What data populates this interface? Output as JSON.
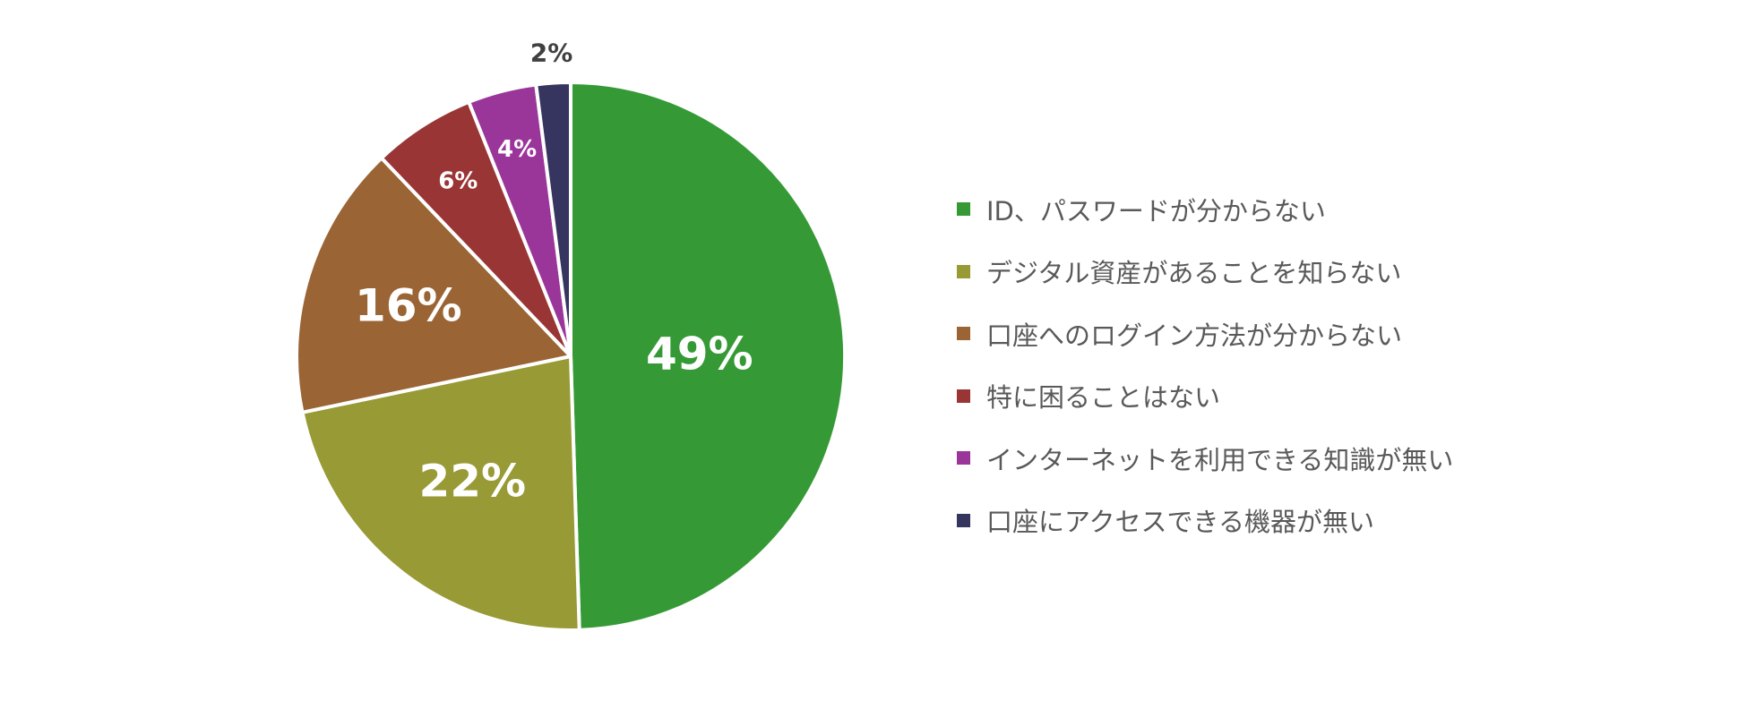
{
  "chart_data": {
    "type": "pie",
    "title": "",
    "start_angle_deg": 90,
    "direction": "clockwise",
    "legend_position": "right",
    "categories": [
      "ID、パスワードが分からない",
      "デジタル資産があることを知らない",
      "口座へのログイン方法が分からない",
      "特に困ることはない",
      "インターネットを利用できる知識が無い",
      "口座にアクセスできる機器が無い"
    ],
    "values": [
      49,
      22,
      16,
      6,
      4,
      2
    ],
    "value_labels": [
      "49%",
      "22%",
      "16%",
      "6%",
      "4%",
      "2%"
    ],
    "colors": [
      "#359a35",
      "#989a35",
      "#9a6435",
      "#9a3535",
      "#9a359a",
      "#35355f"
    ]
  }
}
